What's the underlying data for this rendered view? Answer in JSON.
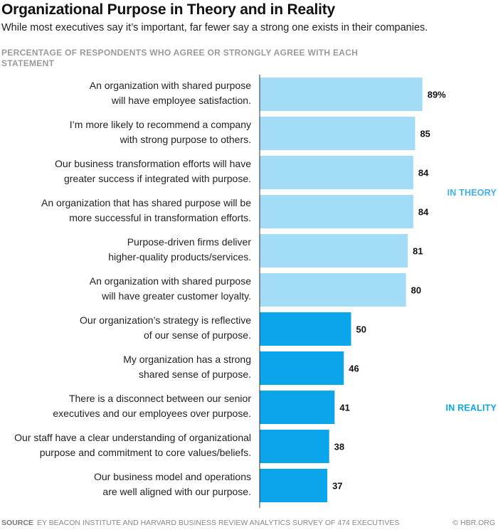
{
  "title": "Organizational Purpose in Theory and in Reality",
  "subtitle": "While most executives say it’s important, far fewer say a strong one exists in their companies.",
  "y_title": "Percentage of respondents who agree or strongly agree with each statement",
  "footer": {
    "source_label": "SOURCE",
    "source_text": "EY BEACON INSTITUTE AND HARVARD BUSINESS REVIEW ANALYTICS SURVEY OF 474 EXECUTIVES",
    "credit": "© HBR.ORG"
  },
  "colors": {
    "theory": "#a3dcf7",
    "reality": "#0aa5ea",
    "theory_label": "#3fb0e8",
    "reality_label": "#0aa5ea",
    "axis": "#333333"
  },
  "chart_data": {
    "type": "bar",
    "orientation": "horizontal",
    "xlim": [
      0,
      100
    ],
    "value_suffix_first": "%",
    "groups": [
      {
        "name": "IN THEORY",
        "color_key": "theory",
        "start": 0,
        "end": 5
      },
      {
        "name": "IN REALITY",
        "color_key": "reality",
        "start": 6,
        "end": 10
      }
    ],
    "bars": [
      {
        "label": [
          "An organization with shared purpose",
          "will have employee satisfaction."
        ],
        "value": 89,
        "group": "IN THEORY"
      },
      {
        "label": [
          "I’m more likely to recommend a company",
          "with strong purpose to others."
        ],
        "value": 85,
        "group": "IN THEORY"
      },
      {
        "label": [
          "Our business transformation efforts will have",
          "greater success if integrated with purpose."
        ],
        "value": 84,
        "group": "IN THEORY"
      },
      {
        "label": [
          "An organization that has shared purpose will be",
          "more successful in transformation efforts."
        ],
        "value": 84,
        "group": "IN THEORY"
      },
      {
        "label": [
          "Purpose-driven firms deliver",
          "higher-quality products/services."
        ],
        "value": 81,
        "group": "IN THEORY"
      },
      {
        "label": [
          "An organization with shared purpose",
          "will have greater customer loyalty."
        ],
        "value": 80,
        "group": "IN THEORY"
      },
      {
        "label": [
          "Our organization’s strategy is reflective",
          "of our sense of purpose."
        ],
        "value": 50,
        "group": "IN REALITY"
      },
      {
        "label": [
          "My organization has a strong",
          "shared sense of purpose."
        ],
        "value": 46,
        "group": "IN REALITY"
      },
      {
        "label": [
          "There is a disconnect between our senior",
          "executives and our employees over purpose."
        ],
        "value": 41,
        "group": "IN REALITY"
      },
      {
        "label": [
          "Our staff have a clear understanding of organizational",
          "purpose and commitment to core values/beliefs."
        ],
        "value": 38,
        "group": "IN REALITY"
      },
      {
        "label": [
          "Our business model and operations",
          "are well aligned with our purpose."
        ],
        "value": 37,
        "group": "IN REALITY"
      }
    ]
  }
}
